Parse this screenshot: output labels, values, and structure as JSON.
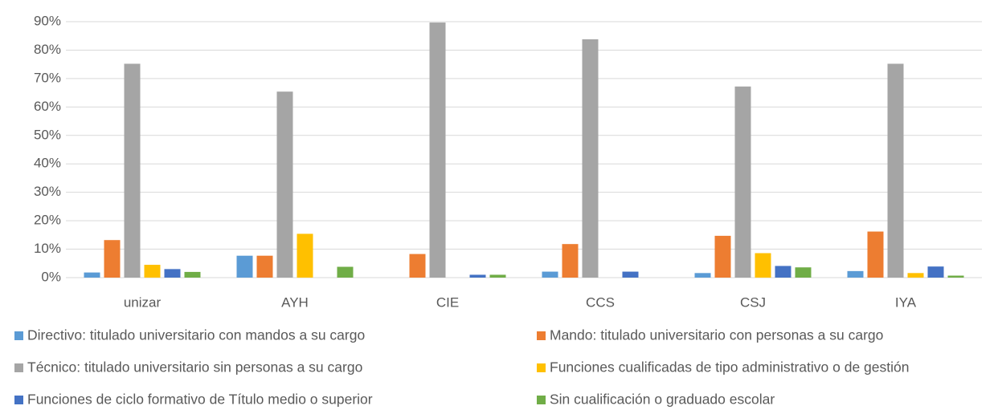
{
  "chart_data": {
    "type": "bar",
    "categories": [
      "unizar",
      "AYH",
      "CIE",
      "CCS",
      "CSJ",
      "IYA"
    ],
    "series": [
      {
        "name": "Directivo: titulado universitario con mandos a su cargo",
        "color": "#5b9bd5",
        "values": [
          1.8,
          7.7,
          0,
          2.1,
          1.6,
          2.3
        ]
      },
      {
        "name": "Mando: titulado universitario con personas a su cargo",
        "color": "#ed7d31",
        "values": [
          13.2,
          7.7,
          8.3,
          11.8,
          14.7,
          16.2
        ]
      },
      {
        "name": "Técnico: titulado universitario sin personas a su cargo",
        "color": "#a5a5a5",
        "values": [
          75.2,
          65.4,
          89.7,
          83.8,
          67.2,
          75.2
        ]
      },
      {
        "name": "Funciones cualificadas de tipo administrativo o de gestión",
        "color": "#ffc000",
        "values": [
          4.5,
          15.4,
          0,
          0,
          8.6,
          1.6
        ]
      },
      {
        "name": "Funciones de ciclo formativo de Título medio o superior",
        "color": "#4472c4",
        "values": [
          3.0,
          0,
          1.0,
          2.1,
          4.1,
          3.9
        ]
      },
      {
        "name": "Sin cualificación o graduado escolar",
        "color": "#70ad47",
        "values": [
          2.0,
          3.8,
          1.0,
          0,
          3.6,
          0.7
        ]
      }
    ],
    "ylim": [
      0,
      90
    ],
    "yticks": [
      {
        "value": 0,
        "label": "0%"
      },
      {
        "value": 10,
        "label": "10%"
      },
      {
        "value": 20,
        "label": "20%"
      },
      {
        "value": 30,
        "label": "30%"
      },
      {
        "value": 40,
        "label": "40%"
      },
      {
        "value": 50,
        "label": "50%"
      },
      {
        "value": 60,
        "label": "60%"
      },
      {
        "value": 70,
        "label": "70%"
      },
      {
        "value": 80,
        "label": "80%"
      },
      {
        "value": 90,
        "label": "90%"
      }
    ],
    "grid": true,
    "legend": "bottom"
  }
}
